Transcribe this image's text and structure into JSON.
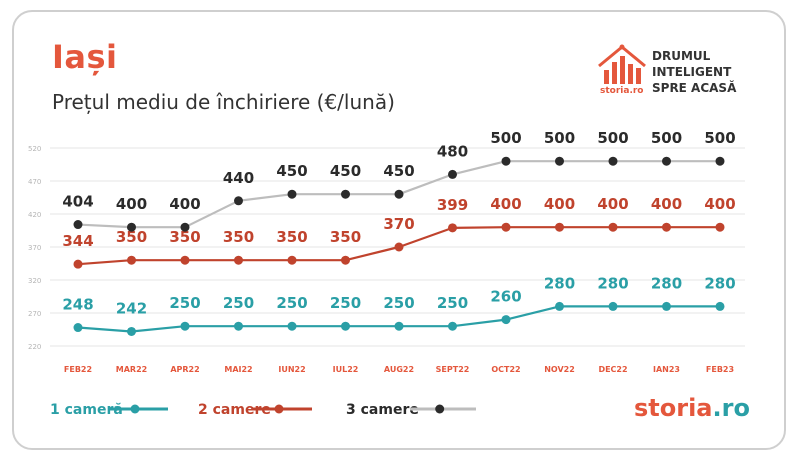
{
  "header": {
    "city": "Iași",
    "subtitle": "Prețul mediu de închiriere (€/lună)"
  },
  "brand": {
    "tag": "storia.ro",
    "slogan": [
      "DRUMUL",
      "INTELIGENT",
      "SPRE ACASĂ"
    ],
    "footer_name": "storia",
    "footer_tld": ".ro",
    "logo_icon": "house-bar-chart-icon"
  },
  "colors": {
    "accent": "#e4573c",
    "series_1": "#2a9fa6",
    "series_2": "#c0432d",
    "series_3": "#2b2b2b",
    "series_3_line": "#bdbdbd",
    "grid": "#e6e6e6"
  },
  "chart_data": {
    "type": "line",
    "title": "Prețul mediu de închiriere (€/lună)",
    "categories": [
      "FEB22",
      "MAR22",
      "APR22",
      "MAI22",
      "IUN22",
      "IUL22",
      "AUG22",
      "SEPT22",
      "OCT22",
      "NOV22",
      "DEC22",
      "IAN23",
      "FEB23"
    ],
    "y_ticks": [
      220,
      270,
      320,
      370,
      420,
      470,
      520
    ],
    "ylim": [
      220,
      520
    ],
    "grid": true,
    "legend_position": "bottom-left",
    "series": [
      {
        "name": "1 cameră",
        "values": [
          248,
          242,
          250,
          250,
          250,
          250,
          250,
          250,
          260,
          280,
          280,
          280,
          280
        ]
      },
      {
        "name": "2 camere",
        "values": [
          344,
          350,
          350,
          350,
          350,
          350,
          370,
          399,
          400,
          400,
          400,
          400,
          400
        ]
      },
      {
        "name": "3 camere",
        "values": [
          404,
          400,
          400,
          440,
          450,
          450,
          450,
          480,
          500,
          500,
          500,
          500,
          500
        ]
      }
    ]
  }
}
